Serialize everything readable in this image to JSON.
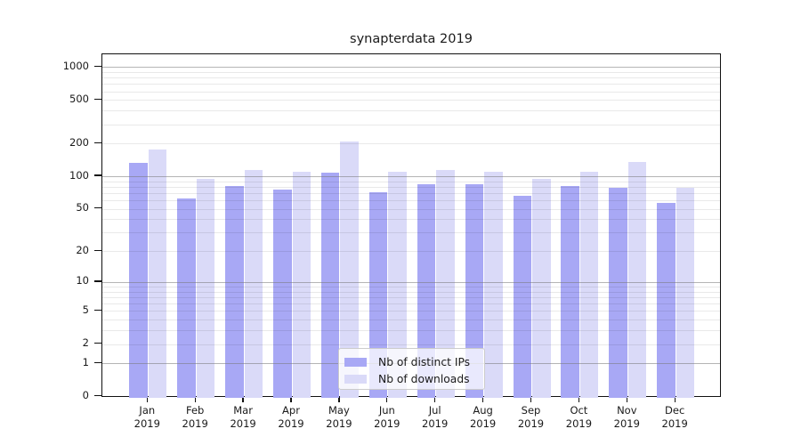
{
  "header": {
    "title": "synapterdata 2019"
  },
  "chart_data": {
    "type": "bar",
    "title": "synapterdata 2019",
    "categories": [
      "Jan",
      "Feb",
      "Mar",
      "Apr",
      "May",
      "Jun",
      "Jul",
      "Aug",
      "Sep",
      "Oct",
      "Nov",
      "Dec"
    ],
    "year_label": "2019",
    "series": [
      {
        "name": "Nb of distinct IPs",
        "color": "#a8a8f5",
        "values": [
          132,
          62,
          81,
          76,
          108,
          71,
          84,
          85,
          66,
          82,
          78,
          57
        ]
      },
      {
        "name": "Nb of downloads",
        "color": "#dadaf8",
        "values": [
          175,
          95,
          114,
          110,
          210,
          110,
          115,
          110,
          94,
          111,
          136,
          78
        ]
      }
    ],
    "xlabel": "",
    "ylabel": "",
    "yscale": "log10(value+1)",
    "ylim": [
      0,
      1300
    ],
    "yticks": [
      0,
      1,
      2,
      5,
      10,
      20,
      50,
      100,
      200,
      500,
      1000
    ],
    "major_gridlines": [
      1,
      10,
      100,
      1000
    ],
    "minor_gridlines": [
      2,
      3,
      4,
      5,
      6,
      7,
      8,
      9,
      20,
      30,
      40,
      50,
      60,
      70,
      80,
      90,
      200,
      300,
      400,
      500,
      600,
      700,
      800,
      900
    ],
    "grid": true,
    "legend_position": "lower-center"
  },
  "colors": {
    "background": "#ffffff",
    "spine": "#111111",
    "major_grid": "#8c8c8c",
    "minor_grid": "#e9e9e9",
    "text": "#1a1a1a",
    "legend_border": "#cccccc"
  }
}
